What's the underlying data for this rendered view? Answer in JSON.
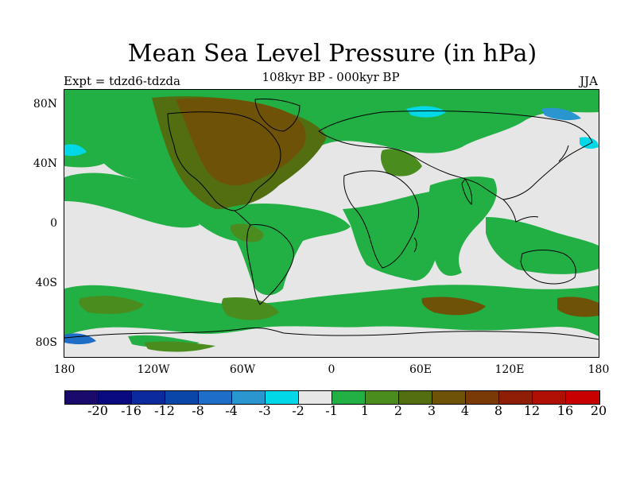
{
  "title": "Mean Sea Level Pressure (in hPa)",
  "subtitle": "108kyr BP - 000kyr BP",
  "experiment": "Expt = tdzd6-tdzda",
  "season": "JJA",
  "y_axis_labels": [
    "80N",
    "40N",
    "0",
    "40S",
    "80S"
  ],
  "x_axis_labels": [
    "180",
    "120W",
    "60W",
    "0",
    "60E",
    "120E",
    "180"
  ],
  "colorbar": {
    "colors": [
      "#1a0a6b",
      "#0a0a80",
      "#0a2a9e",
      "#0a46a8",
      "#1e6ec8",
      "#2a96d0",
      "#00d8e8",
      "#e6e6e6",
      "#22b044",
      "#4a8c1e",
      "#526e10",
      "#6e5208",
      "#7a3a08",
      "#8e1e06",
      "#b01004",
      "#c80000"
    ],
    "labels": [
      "-20",
      "-16",
      "-12",
      "-8",
      "-4",
      "-3",
      "-2",
      "-1",
      "1",
      "2",
      "3",
      "4",
      "8",
      "12",
      "16",
      "20"
    ]
  },
  "map_colors": {
    "neutral": "#e6e6e6",
    "green": "#22b044",
    "dark_green": "#4a8c1e",
    "olive": "#526e10",
    "brown": "#6e5208",
    "dark_brown": "#7a3a08",
    "cyan": "#00d8e8",
    "light_blue": "#2a96d0",
    "blue": "#1e6ec8",
    "coastline": "#000000"
  }
}
